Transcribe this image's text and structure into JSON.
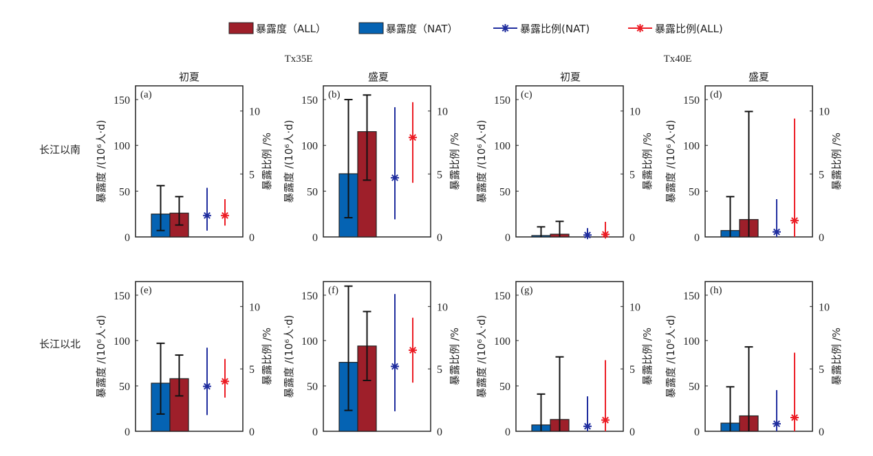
{
  "legend": [
    {
      "label": "暴露度（ALL）",
      "kind": "bar",
      "color": "#9e1f2a"
    },
    {
      "label": "暴露度（NAT）",
      "kind": "bar",
      "color": "#0563b3"
    },
    {
      "label": "暴露比例(NAT)",
      "kind": "star",
      "color": "#1f2d9e"
    },
    {
      "label": "暴露比例(ALL)",
      "kind": "star",
      "color": "#ec1c24"
    }
  ],
  "group_titles": [
    "Tx35E",
    "Tx40E"
  ],
  "column_titles": [
    "初夏",
    "盛夏",
    "初夏",
    "盛夏"
  ],
  "row_titles": [
    "长江以南",
    "长江以北"
  ],
  "colors": {
    "nat_bar": "#0563b3",
    "all_bar": "#9e1f2a",
    "nat_star": "#1f2d9e",
    "all_star": "#ec1c24",
    "errorbar": "#111111"
  },
  "chart_data": {
    "type": "bar",
    "description": "Grouped bars (exposure, left axis) with error bars, plus star markers with ranges (exposure ratio, right axis)",
    "ylabel": "暴露度 /(10⁶人·d)",
    "y2label": "暴露比例 /%",
    "ylim": [
      0,
      165
    ],
    "yticks": [
      0,
      50,
      100,
      150
    ],
    "y2lim": [
      0,
      12
    ],
    "y2ticks": [
      0,
      5,
      10
    ],
    "panels": [
      {
        "label": "(a)",
        "row": 0,
        "col": 0,
        "nat": {
          "value": 25,
          "low": 7,
          "high": 56
        },
        "all": {
          "value": 26,
          "low": 13,
          "high": 44
        },
        "ratio_nat": {
          "value": 1.7,
          "low": 0.5,
          "high": 3.9
        },
        "ratio_all": {
          "value": 1.7,
          "low": 0.9,
          "high": 3.0
        }
      },
      {
        "label": "(b)",
        "row": 0,
        "col": 1,
        "nat": {
          "value": 69,
          "low": 21,
          "high": 150
        },
        "all": {
          "value": 115,
          "low": 62,
          "high": 155
        },
        "ratio_nat": {
          "value": 4.7,
          "low": 1.4,
          "high": 10.3
        },
        "ratio_all": {
          "value": 7.9,
          "low": 4.3,
          "high": 10.7
        }
      },
      {
        "label": "(c)",
        "row": 0,
        "col": 2,
        "nat": {
          "value": 1.5,
          "low": 0,
          "high": 11
        },
        "all": {
          "value": 3,
          "low": 0,
          "high": 17
        },
        "ratio_nat": {
          "value": 0.15,
          "low": 0,
          "high": 0.7
        },
        "ratio_all": {
          "value": 0.2,
          "low": 0,
          "high": 1.2
        }
      },
      {
        "label": "(d)",
        "row": 0,
        "col": 3,
        "nat": {
          "value": 7,
          "low": 0,
          "high": 44
        },
        "all": {
          "value": 19,
          "low": 0,
          "high": 137
        },
        "ratio_nat": {
          "value": 0.4,
          "low": 0,
          "high": 3.0
        },
        "ratio_all": {
          "value": 1.3,
          "low": 0,
          "high": 9.4
        }
      },
      {
        "label": "(e)",
        "row": 1,
        "col": 0,
        "nat": {
          "value": 53,
          "low": 19,
          "high": 97
        },
        "all": {
          "value": 58,
          "low": 39,
          "high": 84
        },
        "ratio_nat": {
          "value": 3.6,
          "low": 1.3,
          "high": 6.7
        },
        "ratio_all": {
          "value": 4.0,
          "low": 2.7,
          "high": 5.8
        }
      },
      {
        "label": "(f)",
        "row": 1,
        "col": 1,
        "nat": {
          "value": 76,
          "low": 23,
          "high": 160
        },
        "all": {
          "value": 94,
          "low": 56,
          "high": 132
        },
        "ratio_nat": {
          "value": 5.2,
          "low": 1.6,
          "high": 11.0
        },
        "ratio_all": {
          "value": 6.5,
          "low": 3.9,
          "high": 9.1
        }
      },
      {
        "label": "(g)",
        "row": 1,
        "col": 2,
        "nat": {
          "value": 7,
          "low": 0,
          "high": 41
        },
        "all": {
          "value": 13,
          "low": 0,
          "high": 82
        },
        "ratio_nat": {
          "value": 0.4,
          "low": 0,
          "high": 2.8
        },
        "ratio_all": {
          "value": 0.9,
          "low": 0,
          "high": 5.7
        }
      },
      {
        "label": "(h)",
        "row": 1,
        "col": 3,
        "nat": {
          "value": 9,
          "low": 0,
          "high": 49
        },
        "all": {
          "value": 17,
          "low": 0,
          "high": 93
        },
        "ratio_nat": {
          "value": 0.6,
          "low": 0,
          "high": 3.3
        },
        "ratio_all": {
          "value": 1.1,
          "low": 0,
          "high": 6.3
        }
      }
    ]
  }
}
